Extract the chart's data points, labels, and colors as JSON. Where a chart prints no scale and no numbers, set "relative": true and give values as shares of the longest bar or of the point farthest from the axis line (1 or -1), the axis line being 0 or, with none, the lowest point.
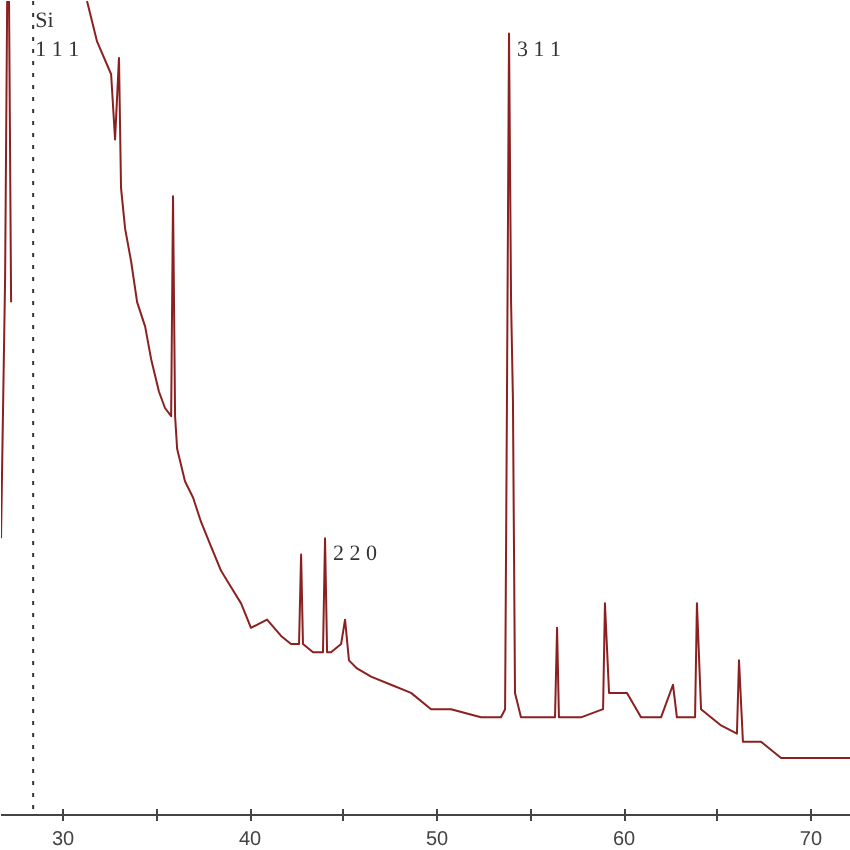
{
  "chart_data": {
    "type": "line",
    "relative": true,
    "x": [
      26.68,
      26.9,
      27.01,
      27.11,
      27.22,
      27.5,
      31.28,
      31.82,
      32.57,
      32.78,
      32.99,
      33.1,
      33.32,
      33.64,
      33.96,
      34.39,
      34.71,
      35.13,
      35.45,
      35.78,
      35.88,
      35.99,
      36.1,
      36.52,
      36.95,
      37.38,
      37.91,
      38.45,
      38.98,
      39.52,
      40.05,
      40.91,
      41.66,
      42.19,
      42.62,
      42.73,
      42.83,
      43.37,
      43.9,
      44.01,
      44.12,
      44.33,
      44.87,
      45.08,
      45.29,
      45.72,
      46.47,
      47.54,
      48.61,
      49.68,
      50.75,
      52.35,
      53.42,
      53.64,
      53.74,
      53.85,
      53.96,
      54.06,
      54.17,
      54.49,
      55.56,
      56.31,
      56.42,
      56.52,
      57.7,
      58.88,
      58.98,
      59.2,
      60.16,
      60.91,
      61.98,
      62.62,
      62.83,
      63.8,
      63.9,
      64.12,
      65.19,
      66.04,
      66.15,
      66.36,
      67.33,
      68.4,
      69.47,
      70.53,
      72.14
    ],
    "series": [
      {
        "color": "#8b2020",
        "values": [
          0.34,
          0.66,
          1.0,
          1.0,
          0.63,
          null,
          1.0,
          0.95,
          0.91,
          0.83,
          0.93,
          0.77,
          0.72,
          0.68,
          0.63,
          0.6,
          0.56,
          0.52,
          0.5,
          0.49,
          0.76,
          0.49,
          0.45,
          0.41,
          0.39,
          0.36,
          0.33,
          0.3,
          0.28,
          0.26,
          0.23,
          0.24,
          0.22,
          0.21,
          0.21,
          0.32,
          0.21,
          0.2,
          0.2,
          0.34,
          0.2,
          0.2,
          0.21,
          0.24,
          0.19,
          0.18,
          0.17,
          0.16,
          0.15,
          0.13,
          0.13,
          0.12,
          0.12,
          0.13,
          0.51,
          0.96,
          0.63,
          0.51,
          0.15,
          0.12,
          0.12,
          0.12,
          0.23,
          0.12,
          0.12,
          0.13,
          0.26,
          0.15,
          0.15,
          0.12,
          0.12,
          0.16,
          0.12,
          0.12,
          0.26,
          0.13,
          0.11,
          0.1,
          0.19,
          0.09,
          0.09,
          0.07,
          0.07,
          0.07,
          0.07
        ]
      }
    ],
    "xlim": [
      26.68,
      72.14
    ],
    "xticks": [
      30,
      {
        "value": 35,
        "label": null
      },
      40,
      {
        "value": 45,
        "label": null
      },
      50,
      {
        "value": 55,
        "label": null
      },
      60,
      {
        "value": 65,
        "label": null
      },
      70
    ],
    "tick_labels": "x",
    "grid": false,
    "line_style": "solid",
    "ref_lines": [
      {
        "axis": "x",
        "value": 28.4,
        "label": "Si\n1 1 1",
        "color": "#333333",
        "line_style": "dotted"
      }
    ],
    "annotations": [
      {
        "text": "2 2 0",
        "x": 44.01,
        "y": 0.34
      },
      {
        "text": "3 1 1",
        "x": 53.85,
        "y": 0.96
      }
    ]
  }
}
